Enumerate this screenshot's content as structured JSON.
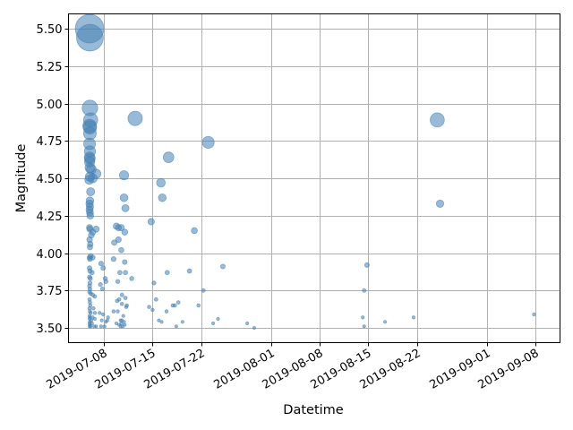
{
  "chart_data": {
    "type": "scatter",
    "title": "",
    "xlabel": "Datetime",
    "ylabel": "Magnitude",
    "grid": true,
    "marker_color": "#4682b4",
    "marker_alpha": 0.55,
    "size_encoding": "marker area grows with magnitude",
    "x_ticks": [
      "2019-07-08",
      "2019-07-15",
      "2019-07-22",
      "2019-08-01",
      "2019-08-08",
      "2019-08-15",
      "2019-08-22",
      "2019-09-01",
      "2019-09-08"
    ],
    "x_tick_days": [
      0,
      7,
      14,
      24,
      31,
      38,
      45,
      55,
      62
    ],
    "xlim_days": [
      -5.1,
      65.5
    ],
    "y_ticks": [
      "3.50",
      "3.75",
      "4.00",
      "4.25",
      "4.50",
      "4.75",
      "5.00",
      "5.25",
      "5.50"
    ],
    "y_tick_values": [
      3.5,
      3.75,
      4.0,
      4.25,
      4.5,
      4.75,
      5.0,
      5.25,
      5.5
    ],
    "ylim": [
      3.4,
      5.6
    ],
    "x_origin_date": "2019-07-08",
    "points_note": "x = days after 2019-07-08, y = magnitude",
    "points": [
      [
        -2.05,
        5.5
      ],
      [
        -2.0,
        5.44
      ],
      [
        -2.0,
        4.97
      ],
      [
        -1.9,
        4.89
      ],
      [
        -2.05,
        4.85
      ],
      [
        -2.0,
        4.84
      ],
      [
        -2.0,
        4.8
      ],
      [
        -2.05,
        4.73
      ],
      [
        -2.0,
        4.68
      ],
      [
        -2.05,
        4.64
      ],
      [
        -2.0,
        4.63
      ],
      [
        -2.05,
        4.61
      ],
      [
        -2.0,
        4.57
      ],
      [
        -1.8,
        4.56
      ],
      [
        -1.1,
        4.53
      ],
      [
        -2.0,
        4.51
      ],
      [
        -1.6,
        4.5
      ],
      [
        -2.1,
        4.49
      ],
      [
        -1.9,
        4.41
      ],
      [
        -2.0,
        4.35
      ],
      [
        -2.05,
        4.33
      ],
      [
        -2.0,
        4.31
      ],
      [
        -2.05,
        4.29
      ],
      [
        -2.0,
        4.27
      ],
      [
        -1.95,
        4.25
      ],
      [
        -2.05,
        4.17
      ],
      [
        -2.0,
        4.16
      ],
      [
        -1.1,
        4.16
      ],
      [
        -1.6,
        4.14
      ],
      [
        -1.8,
        4.12
      ],
      [
        -2.05,
        4.09
      ],
      [
        -1.95,
        4.06
      ],
      [
        -2.0,
        4.04
      ],
      [
        -1.9,
        3.98
      ],
      [
        -2.05,
        3.97
      ],
      [
        -1.6,
        3.97
      ],
      [
        -2.0,
        3.96
      ],
      [
        -2.05,
        3.9
      ],
      [
        -2.0,
        3.88
      ],
      [
        -1.7,
        3.87
      ],
      [
        -2.05,
        3.84
      ],
      [
        -1.95,
        3.83
      ],
      [
        -2.0,
        3.8
      ],
      [
        -2.05,
        3.78
      ],
      [
        -2.0,
        3.76
      ],
      [
        -2.05,
        3.74
      ],
      [
        -1.9,
        3.73
      ],
      [
        -1.6,
        3.72
      ],
      [
        -1.3,
        3.71
      ],
      [
        -2.05,
        3.69
      ],
      [
        -2.0,
        3.67
      ],
      [
        -1.95,
        3.65
      ],
      [
        -2.05,
        3.63
      ],
      [
        -1.5,
        3.63
      ],
      [
        -2.0,
        3.61
      ],
      [
        -1.9,
        3.6
      ],
      [
        -1.3,
        3.6
      ],
      [
        -2.05,
        3.58
      ],
      [
        -2.0,
        3.57
      ],
      [
        -1.6,
        3.57
      ],
      [
        -2.05,
        3.56
      ],
      [
        -1.8,
        3.55
      ],
      [
        -1.3,
        3.56
      ],
      [
        -2.0,
        3.54
      ],
      [
        -2.05,
        3.53
      ],
      [
        -1.7,
        3.53
      ],
      [
        -2.0,
        3.52
      ],
      [
        -1.9,
        3.51
      ],
      [
        -1.4,
        3.51
      ],
      [
        -2.05,
        3.51
      ],
      [
        -1.1,
        3.51
      ],
      [
        -0.4,
        3.93
      ],
      [
        -0.1,
        3.9
      ],
      [
        0.2,
        3.83
      ],
      [
        0.3,
        3.81
      ],
      [
        -0.5,
        3.79
      ],
      [
        -0.2,
        3.76
      ],
      [
        -0.6,
        3.6
      ],
      [
        -0.1,
        3.59
      ],
      [
        -0.3,
        3.55
      ],
      [
        0.3,
        3.54
      ],
      [
        0.6,
        3.57
      ],
      [
        0.5,
        3.55
      ],
      [
        -0.4,
        3.51
      ],
      [
        0.1,
        3.51
      ],
      [
        1.8,
        4.18
      ],
      [
        2.1,
        4.17
      ],
      [
        2.5,
        4.17
      ],
      [
        1.5,
        4.07
      ],
      [
        2.1,
        4.09
      ],
      [
        2.5,
        4.02
      ],
      [
        1.4,
        3.96
      ],
      [
        3.0,
        3.94
      ],
      [
        2.3,
        3.87
      ],
      [
        3.1,
        3.87
      ],
      [
        2.0,
        3.81
      ],
      [
        4.0,
        3.83
      ],
      [
        2.6,
        3.72
      ],
      [
        3.1,
        3.7
      ],
      [
        2.2,
        3.69
      ],
      [
        1.9,
        3.68
      ],
      [
        2.6,
        3.66
      ],
      [
        3.3,
        3.65
      ],
      [
        3.2,
        3.64
      ],
      [
        2.0,
        3.61
      ],
      [
        1.4,
        3.61
      ],
      [
        2.8,
        3.58
      ],
      [
        2.4,
        3.55
      ],
      [
        2.6,
        3.55
      ],
      [
        2.9,
        3.54
      ],
      [
        1.8,
        3.53
      ],
      [
        2.5,
        3.53
      ],
      [
        2.2,
        3.52
      ],
      [
        3.0,
        3.52
      ],
      [
        2.7,
        3.51
      ],
      [
        2.4,
        3.51
      ],
      [
        4.5,
        4.9
      ],
      [
        2.9,
        4.52
      ],
      [
        2.9,
        4.37
      ],
      [
        3.1,
        4.3
      ],
      [
        3.0,
        4.14
      ],
      [
        6.8,
        4.21
      ],
      [
        8.2,
        4.47
      ],
      [
        8.4,
        4.37
      ],
      [
        9.3,
        4.64
      ],
      [
        6.5,
        3.64
      ],
      [
        7.0,
        3.62
      ],
      [
        7.2,
        3.8
      ],
      [
        7.5,
        3.69
      ],
      [
        7.9,
        3.55
      ],
      [
        8.3,
        3.54
      ],
      [
        9.1,
        3.87
      ],
      [
        9.0,
        3.61
      ],
      [
        9.9,
        3.65
      ],
      [
        10.2,
        3.65
      ],
      [
        10.7,
        3.67
      ],
      [
        11.3,
        3.54
      ],
      [
        10.4,
        3.51
      ],
      [
        15.0,
        4.74
      ],
      [
        13.0,
        4.15
      ],
      [
        12.3,
        3.88
      ],
      [
        13.6,
        3.65
      ],
      [
        14.3,
        3.75
      ],
      [
        15.7,
        3.53
      ],
      [
        16.4,
        3.56
      ],
      [
        17.1,
        3.91
      ],
      [
        20.6,
        3.53
      ],
      [
        21.6,
        3.5
      ],
      [
        47.9,
        4.89
      ],
      [
        48.3,
        4.33
      ],
      [
        37.8,
        3.92
      ],
      [
        37.4,
        3.75
      ],
      [
        37.2,
        3.57
      ],
      [
        37.4,
        3.51
      ],
      [
        40.4,
        3.54
      ],
      [
        44.5,
        3.57
      ],
      [
        61.8,
        3.59
      ]
    ]
  }
}
